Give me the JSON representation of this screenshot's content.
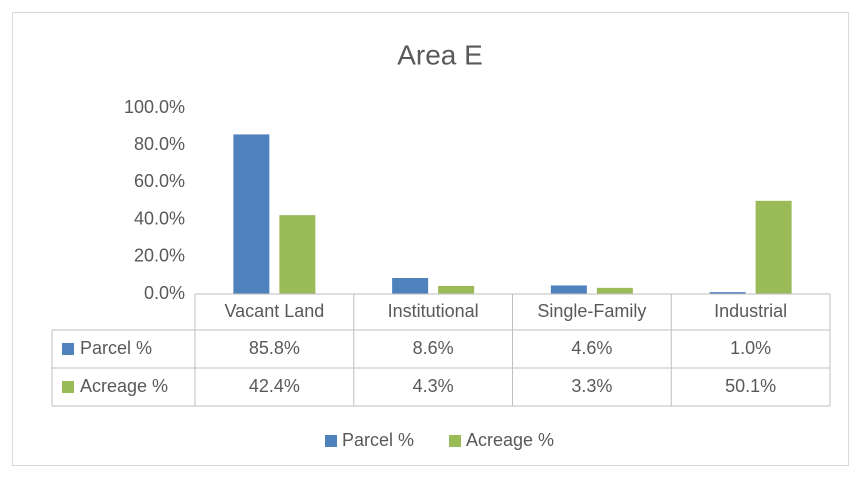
{
  "chart_data": {
    "type": "bar",
    "title": "Area E",
    "categories": [
      "Vacant Land",
      "Institutional",
      "Single-Family",
      "Industrial"
    ],
    "series": [
      {
        "name": "Parcel %",
        "color": "#4f81bd",
        "values": [
          85.8,
          8.6,
          4.6,
          1.0
        ],
        "value_labels": [
          "85.8%",
          "8.6%",
          "4.6%",
          "1.0%"
        ]
      },
      {
        "name": "Acreage %",
        "color": "#9bbb59",
        "values": [
          42.4,
          4.3,
          3.3,
          50.1
        ],
        "value_labels": [
          "42.4%",
          "4.3%",
          "3.3%",
          "50.1%"
        ]
      }
    ],
    "ylim": [
      0,
      100
    ],
    "yticks": [
      {
        "value": 0,
        "label": "0.0%"
      },
      {
        "value": 20,
        "label": "20.0%"
      },
      {
        "value": 40,
        "label": "40.0%"
      },
      {
        "value": 60,
        "label": "60.0%"
      },
      {
        "value": 80,
        "label": "80.0%"
      },
      {
        "value": 100,
        "label": "100.0%"
      }
    ],
    "grid": false,
    "data_table": true,
    "legend": "bottom"
  }
}
